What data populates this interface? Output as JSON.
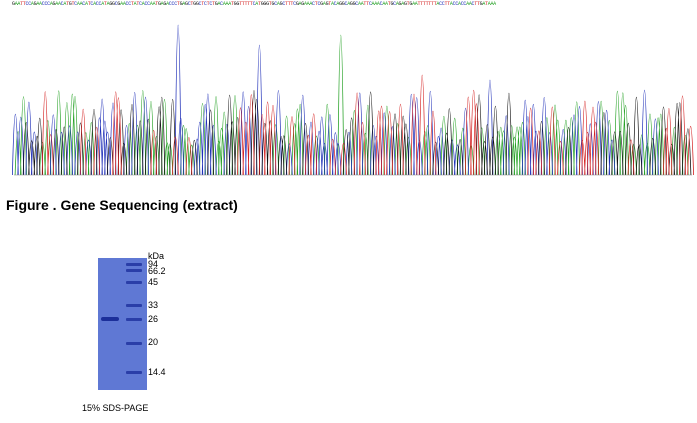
{
  "sequencing": {
    "sequence": "GAATTCCAGAACCCAGAACATGTCAACATCACCATAGGCGAACCTATCACCAATGAGACCCTGAGCTGGCTCTCTGACAAATGGTTTTTCATGGGTGCAGCTTTCGAGAAACTCGAGTACAGGCAGGCAATTCAAACAATGCAGAGTGAATTTTTTTACCTTACCACCAACTTGATAAA",
    "base_colors": {
      "A": "#22a022",
      "C": "#1f2fb8",
      "G": "#111111",
      "T": "#d42020"
    },
    "caption": "Figure . Gene Sequencing (extract)"
  },
  "gel": {
    "unit_label": "kDa",
    "markers": [
      "94",
      "66.2",
      "45",
      "33",
      "26",
      "20",
      "14.4"
    ],
    "caption": "15% SDS-PAGE",
    "colors": {
      "lane": "#5f78d4",
      "band": "#2a3ea8"
    }
  }
}
